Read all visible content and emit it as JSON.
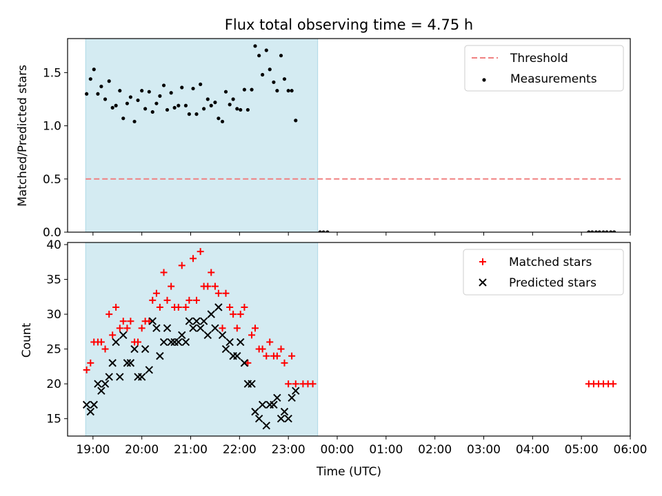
{
  "title": "Flux total observing time = 4.75 h",
  "xaxis": {
    "label": "Time (UTC)",
    "ticks": [
      "19:00",
      "20:00",
      "21:00",
      "22:00",
      "23:00",
      "00:00",
      "01:00",
      "02:00",
      "03:00",
      "04:00",
      "05:00",
      "06:00"
    ]
  },
  "colors": {
    "shade": "#add8e6",
    "threshold": "#f08080",
    "measurement": "#000000",
    "matched": "#ff0000",
    "predicted": "#000000"
  },
  "chart_data": [
    {
      "type": "scatter",
      "ylabel": "Matched/Predicted stars",
      "x_unit": "hours since 19:00 UTC",
      "xlim": [
        -0.52,
        11.0
      ],
      "ylim": [
        0,
        1.82
      ],
      "yticks": [
        "0.0",
        "0.5",
        "1.0",
        "1.5"
      ],
      "shaded_region": {
        "x": [
          -0.15,
          4.6
        ]
      },
      "legend": {
        "position": "top-right",
        "entries": [
          "Threshold",
          "Measurements"
        ]
      },
      "threshold": {
        "name": "Threshold",
        "y": 0.5,
        "x": [
          -0.15,
          10.85
        ]
      },
      "series": [
        {
          "name": "Measurements",
          "points": [
            [
              -0.13,
              1.3
            ],
            [
              -0.05,
              1.44
            ],
            [
              0.02,
              1.53
            ],
            [
              0.1,
              1.3
            ],
            [
              0.17,
              1.37
            ],
            [
              0.25,
              1.25
            ],
            [
              0.33,
              1.42
            ],
            [
              0.4,
              1.17
            ],
            [
              0.47,
              1.19
            ],
            [
              0.55,
              1.33
            ],
            [
              0.62,
              1.07
            ],
            [
              0.7,
              1.21
            ],
            [
              0.77,
              1.27
            ],
            [
              0.85,
              1.04
            ],
            [
              0.92,
              1.24
            ],
            [
              1.0,
              1.33
            ],
            [
              1.07,
              1.16
            ],
            [
              1.15,
              1.32
            ],
            [
              1.22,
              1.13
            ],
            [
              1.3,
              1.21
            ],
            [
              1.37,
              1.28
            ],
            [
              1.45,
              1.38
            ],
            [
              1.52,
              1.15
            ],
            [
              1.6,
              1.31
            ],
            [
              1.67,
              1.17
            ],
            [
              1.75,
              1.19
            ],
            [
              1.82,
              1.36
            ],
            [
              1.9,
              1.19
            ],
            [
              1.97,
              1.11
            ],
            [
              2.05,
              1.35
            ],
            [
              2.12,
              1.11
            ],
            [
              2.2,
              1.39
            ],
            [
              2.27,
              1.16
            ],
            [
              2.35,
              1.25
            ],
            [
              2.42,
              1.19
            ],
            [
              2.5,
              1.22
            ],
            [
              2.57,
              1.07
            ],
            [
              2.65,
              1.04
            ],
            [
              2.72,
              1.32
            ],
            [
              2.8,
              1.2
            ],
            [
              2.87,
              1.25
            ],
            [
              2.95,
              1.16
            ],
            [
              3.02,
              1.15
            ],
            [
              3.1,
              1.34
            ],
            [
              3.17,
              1.15
            ],
            [
              3.25,
              1.34
            ],
            [
              3.32,
              1.75
            ],
            [
              3.4,
              1.66
            ],
            [
              3.47,
              1.48
            ],
            [
              3.55,
              1.71
            ],
            [
              3.62,
              1.53
            ],
            [
              3.7,
              1.41
            ],
            [
              3.77,
              1.33
            ],
            [
              3.85,
              1.66
            ],
            [
              3.92,
              1.44
            ],
            [
              4.0,
              1.33
            ],
            [
              4.07,
              1.33
            ],
            [
              4.15,
              1.05
            ],
            [
              4.65,
              0.0
            ],
            [
              4.72,
              0.0
            ],
            [
              4.8,
              0.0
            ],
            [
              10.15,
              0.0
            ],
            [
              10.22,
              0.0
            ],
            [
              10.3,
              0.0
            ],
            [
              10.37,
              0.0
            ],
            [
              10.45,
              0.0
            ],
            [
              10.52,
              0.0
            ],
            [
              10.6,
              0.0
            ],
            [
              10.67,
              0.0
            ]
          ]
        }
      ]
    },
    {
      "type": "scatter",
      "ylabel": "Count",
      "x_unit": "hours since 19:00 UTC",
      "xlim": [
        -0.52,
        11.0
      ],
      "ylim": [
        12.5,
        40.3
      ],
      "yticks": [
        "15",
        "20",
        "25",
        "30",
        "35",
        "40"
      ],
      "shaded_region": {
        "x": [
          -0.15,
          4.6
        ]
      },
      "legend": {
        "position": "top-right",
        "entries": [
          "Matched stars",
          "Predicted stars"
        ]
      },
      "series": [
        {
          "name": "Matched stars",
          "marker": "plus",
          "points": [
            [
              -0.13,
              22
            ],
            [
              -0.05,
              23
            ],
            [
              0.02,
              26
            ],
            [
              0.1,
              26
            ],
            [
              0.17,
              26
            ],
            [
              0.25,
              25
            ],
            [
              0.33,
              30
            ],
            [
              0.4,
              27
            ],
            [
              0.47,
              31
            ],
            [
              0.55,
              28
            ],
            [
              0.62,
              29
            ],
            [
              0.7,
              28
            ],
            [
              0.77,
              29
            ],
            [
              0.85,
              26
            ],
            [
              0.92,
              26
            ],
            [
              1.0,
              28
            ],
            [
              1.07,
              29
            ],
            [
              1.15,
              29
            ],
            [
              1.22,
              32
            ],
            [
              1.3,
              33
            ],
            [
              1.37,
              31
            ],
            [
              1.45,
              36
            ],
            [
              1.52,
              32
            ],
            [
              1.6,
              34
            ],
            [
              1.67,
              31
            ],
            [
              1.75,
              31
            ],
            [
              1.82,
              37
            ],
            [
              1.9,
              31
            ],
            [
              1.97,
              32
            ],
            [
              2.05,
              38
            ],
            [
              2.12,
              32
            ],
            [
              2.2,
              39
            ],
            [
              2.27,
              34
            ],
            [
              2.35,
              34
            ],
            [
              2.42,
              36
            ],
            [
              2.5,
              34
            ],
            [
              2.57,
              33
            ],
            [
              2.65,
              28
            ],
            [
              2.72,
              33
            ],
            [
              2.8,
              31
            ],
            [
              2.87,
              30
            ],
            [
              2.95,
              28
            ],
            [
              3.02,
              30
            ],
            [
              3.1,
              31
            ],
            [
              3.17,
              23
            ],
            [
              3.25,
              27
            ],
            [
              3.32,
              28
            ],
            [
              3.4,
              25
            ],
            [
              3.47,
              25
            ],
            [
              3.55,
              24
            ],
            [
              3.62,
              26
            ],
            [
              3.7,
              24
            ],
            [
              3.77,
              24
            ],
            [
              3.85,
              25
            ],
            [
              3.92,
              23
            ],
            [
              4.0,
              20
            ],
            [
              4.07,
              24
            ],
            [
              4.15,
              20
            ],
            [
              4.3,
              20
            ],
            [
              4.4,
              20
            ],
            [
              4.5,
              20
            ],
            [
              10.15,
              20
            ],
            [
              10.25,
              20
            ],
            [
              10.35,
              20
            ],
            [
              10.45,
              20
            ],
            [
              10.55,
              20
            ],
            [
              10.65,
              20
            ]
          ]
        },
        {
          "name": "Predicted stars",
          "marker": "x",
          "points": [
            [
              -0.13,
              17
            ],
            [
              -0.05,
              16
            ],
            [
              0.02,
              17
            ],
            [
              0.1,
              20
            ],
            [
              0.17,
              19
            ],
            [
              0.25,
              20
            ],
            [
              0.33,
              21
            ],
            [
              0.4,
              23
            ],
            [
              0.47,
              26
            ],
            [
              0.55,
              21
            ],
            [
              0.62,
              27
            ],
            [
              0.7,
              23
            ],
            [
              0.77,
              23
            ],
            [
              0.85,
              25
            ],
            [
              0.92,
              21
            ],
            [
              1.0,
              21
            ],
            [
              1.07,
              25
            ],
            [
              1.15,
              22
            ],
            [
              1.22,
              29
            ],
            [
              1.3,
              28
            ],
            [
              1.37,
              24
            ],
            [
              1.45,
              26
            ],
            [
              1.52,
              28
            ],
            [
              1.6,
              26
            ],
            [
              1.67,
              26
            ],
            [
              1.75,
              26
            ],
            [
              1.82,
              27
            ],
            [
              1.9,
              26
            ],
            [
              1.97,
              29
            ],
            [
              2.05,
              28
            ],
            [
              2.12,
              29
            ],
            [
              2.2,
              28
            ],
            [
              2.27,
              29
            ],
            [
              2.35,
              27
            ],
            [
              2.42,
              30
            ],
            [
              2.5,
              28
            ],
            [
              2.57,
              31
            ],
            [
              2.65,
              27
            ],
            [
              2.72,
              25
            ],
            [
              2.8,
              26
            ],
            [
              2.87,
              24
            ],
            [
              2.95,
              24
            ],
            [
              3.02,
              26
            ],
            [
              3.1,
              23
            ],
            [
              3.17,
              20
            ],
            [
              3.25,
              20
            ],
            [
              3.32,
              16
            ],
            [
              3.4,
              15
            ],
            [
              3.47,
              17
            ],
            [
              3.55,
              14
            ],
            [
              3.62,
              17
            ],
            [
              3.7,
              17
            ],
            [
              3.77,
              18
            ],
            [
              3.85,
              15
            ],
            [
              3.92,
              16
            ],
            [
              4.0,
              15
            ],
            [
              4.07,
              18
            ],
            [
              4.15,
              19
            ]
          ]
        }
      ]
    }
  ]
}
